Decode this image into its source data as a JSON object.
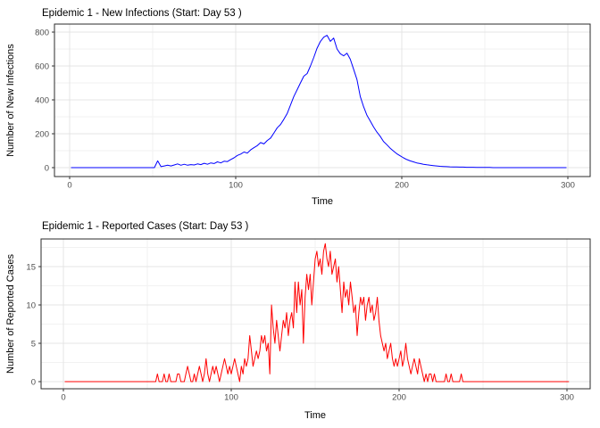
{
  "page_background": "#ffffff",
  "theme": {
    "panel_background": "#ffffff",
    "panel_border": "#2b2b2b",
    "grid_major": "#e4e4e4",
    "grid_minor": "#f2f2f2",
    "tick_mark_color": "#333333",
    "tick_label_color": "#4d4d4d",
    "title_color": "#000000"
  },
  "chart_data": [
    {
      "type": "line",
      "title": "Epidemic 1 - New Infections (Start: Day 53 )",
      "xlabel": "Time",
      "ylabel": "Number of New Infections",
      "color": "#0000ff",
      "legend": "none",
      "grid": "on",
      "x_range_shown": [
        0,
        300
      ],
      "y_range_shown": [
        0,
        800
      ],
      "x_ticks": [
        0,
        100,
        200,
        300
      ],
      "x_minor_ticks": [
        50,
        150,
        250
      ],
      "y_ticks": [
        0,
        200,
        400,
        600,
        800
      ],
      "y_minor_ticks": [
        100,
        300,
        500,
        700
      ],
      "start_day_annotation": "Day 53",
      "x_start": 1,
      "x_step": 2,
      "values": [
        0,
        0,
        0,
        0,
        0,
        0,
        0,
        0,
        0,
        0,
        0,
        0,
        0,
        0,
        0,
        0,
        0,
        0,
        0,
        0,
        0,
        0,
        0,
        0,
        0,
        0,
        40,
        6,
        10,
        14,
        10,
        16,
        22,
        14,
        20,
        14,
        18,
        16,
        22,
        18,
        26,
        20,
        28,
        24,
        34,
        28,
        38,
        36,
        48,
        58,
        72,
        80,
        92,
        86,
        105,
        118,
        130,
        148,
        140,
        160,
        175,
        205,
        235,
        255,
        285,
        320,
        370,
        420,
        460,
        500,
        540,
        555,
        600,
        650,
        705,
        745,
        770,
        781,
        745,
        765,
        700,
        672,
        660,
        676,
        640,
        580,
        520,
        420,
        360,
        310,
        275,
        240,
        210,
        185,
        155,
        135,
        115,
        98,
        82,
        70,
        58,
        48,
        40,
        34,
        28,
        24,
        20,
        17,
        14,
        12,
        10,
        8,
        7,
        6,
        5,
        4,
        4,
        3,
        3,
        2,
        2,
        2,
        1,
        1,
        1,
        1,
        1,
        0,
        0,
        0,
        0,
        0,
        0,
        0,
        0,
        0,
        0,
        0,
        0,
        0,
        0,
        0,
        0,
        0,
        0,
        0,
        0,
        0,
        0,
        0
      ]
    },
    {
      "type": "line",
      "title": "Epidemic 1 - Reported Cases (Start: Day 53 )",
      "xlabel": "Time",
      "ylabel": "Number of Reported Cases",
      "color": "#ff0000",
      "legend": "none",
      "grid": "on",
      "x_range_shown": [
        0,
        300
      ],
      "y_range_shown": [
        0,
        18
      ],
      "x_ticks": [
        0,
        100,
        200,
        300
      ],
      "x_minor_ticks": [
        50,
        150,
        250
      ],
      "y_ticks": [
        0,
        5,
        10,
        15
      ],
      "y_minor_ticks": [
        2.5,
        7.5,
        12.5,
        17.5
      ],
      "start_day_annotation": "Day 53",
      "x_start": 1,
      "x_step": 1,
      "values": [
        0,
        0,
        0,
        0,
        0,
        0,
        0,
        0,
        0,
        0,
        0,
        0,
        0,
        0,
        0,
        0,
        0,
        0,
        0,
        0,
        0,
        0,
        0,
        0,
        0,
        0,
        0,
        0,
        0,
        0,
        0,
        0,
        0,
        0,
        0,
        0,
        0,
        0,
        0,
        0,
        0,
        0,
        0,
        0,
        0,
        0,
        0,
        0,
        0,
        0,
        0,
        0,
        0,
        0,
        0,
        1,
        0,
        0,
        0,
        1,
        0,
        0,
        1,
        0,
        0,
        0,
        0,
        1,
        1,
        0,
        0,
        0,
        1,
        2,
        1,
        0,
        0,
        1,
        0,
        1,
        2,
        1,
        0,
        1,
        3,
        1,
        0,
        1,
        2,
        1,
        2,
        1,
        0,
        1,
        2,
        3,
        2,
        1,
        2,
        1,
        2,
        3,
        2,
        1,
        0,
        2,
        1,
        3,
        2,
        3,
        6,
        4,
        2,
        3,
        4,
        3,
        4,
        6,
        5,
        6,
        4,
        5,
        1,
        10,
        7,
        5,
        8,
        6,
        4,
        6,
        8,
        7,
        9,
        6,
        8,
        9,
        7,
        13,
        9,
        13,
        10,
        12,
        5,
        11,
        14,
        12,
        14,
        10,
        13,
        16,
        17,
        15,
        16,
        14,
        17,
        18,
        16,
        15,
        17,
        14,
        15,
        16,
        13,
        15,
        12,
        9,
        13,
        11,
        12,
        10,
        13,
        11,
        9,
        10,
        6,
        9,
        11,
        10,
        11,
        8,
        10,
        11,
        9,
        10,
        8,
        9,
        11,
        8,
        6,
        5,
        4,
        5,
        3,
        4,
        5,
        3,
        2,
        3,
        2,
        3,
        4,
        2,
        3,
        5,
        3,
        2,
        1,
        2,
        3,
        2,
        1,
        3,
        2,
        1,
        0,
        1,
        0,
        1,
        1,
        0,
        1,
        0,
        0,
        0,
        0,
        0,
        0,
        1,
        0,
        0,
        1,
        0,
        0,
        0,
        0,
        0,
        1,
        0,
        0,
        0,
        0,
        0,
        0,
        0,
        0,
        0,
        0,
        0,
        0,
        0,
        0,
        0,
        0,
        0,
        0,
        0,
        0,
        0,
        0,
        0,
        0,
        0,
        0,
        0,
        0,
        0,
        0,
        0,
        0,
        0,
        0,
        0,
        0,
        0,
        0,
        0,
        0,
        0,
        0,
        0,
        0,
        0,
        0,
        0,
        0,
        0,
        0,
        0,
        0,
        0,
        0,
        0,
        0,
        0,
        0,
        0,
        0,
        0,
        0,
        0,
        0
      ]
    }
  ]
}
